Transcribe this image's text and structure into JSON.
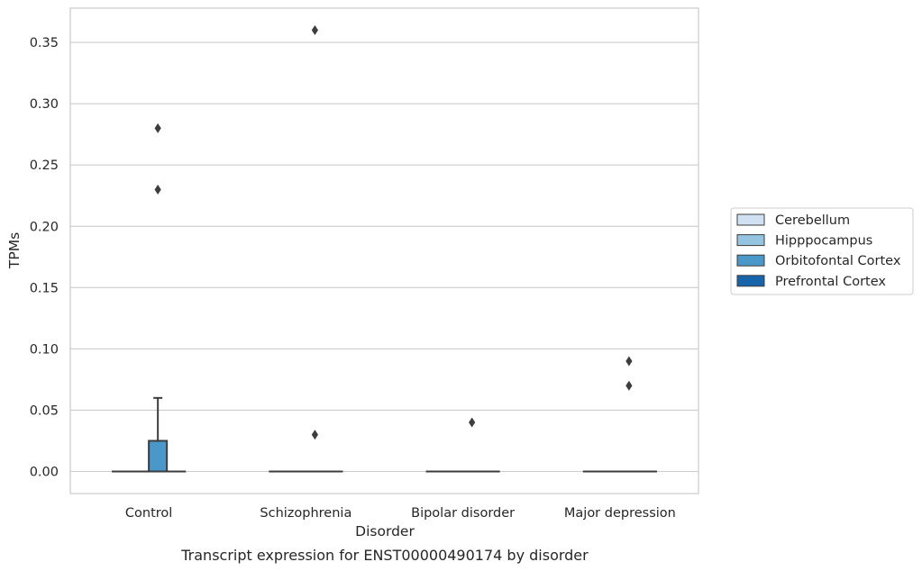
{
  "chart_data": {
    "type": "box",
    "title": "",
    "caption": "Transcript expression for ENST00000490174 by disorder",
    "xlabel": "Disorder",
    "ylabel": "TPMs",
    "ylim": [
      -0.018,
      0.378
    ],
    "yticks": [
      0.0,
      0.05,
      0.1,
      0.15,
      0.2,
      0.25,
      0.3,
      0.35
    ],
    "ytick_labels": [
      "0.00",
      "0.05",
      "0.10",
      "0.15",
      "0.20",
      "0.25",
      "0.30",
      "0.35"
    ],
    "grid": "horizontal",
    "legend_position": "right",
    "categories": [
      "Control",
      "Schizophrenia",
      "Bipolar disorder",
      "Major depression"
    ],
    "series": [
      {
        "name": "Cerebellum",
        "color": "#d0e1f2",
        "boxes": [
          {
            "category": "Control",
            "q1": 0,
            "median": 0,
            "q3": 0,
            "whisker_low": 0,
            "whisker_high": 0,
            "outliers": []
          },
          {
            "category": "Schizophrenia",
            "q1": 0,
            "median": 0,
            "q3": 0,
            "whisker_low": 0,
            "whisker_high": 0,
            "outliers": []
          },
          {
            "category": "Bipolar disorder",
            "q1": 0,
            "median": 0,
            "q3": 0,
            "whisker_low": 0,
            "whisker_high": 0,
            "outliers": []
          },
          {
            "category": "Major depression",
            "q1": 0,
            "median": 0,
            "q3": 0,
            "whisker_low": 0,
            "whisker_high": 0,
            "outliers": []
          }
        ]
      },
      {
        "name": "Hipppocampus",
        "color": "#94c4df",
        "boxes": [
          {
            "category": "Control",
            "q1": 0,
            "median": 0,
            "q3": 0,
            "whisker_low": 0,
            "whisker_high": 0,
            "outliers": []
          },
          {
            "category": "Schizophrenia",
            "q1": 0,
            "median": 0,
            "q3": 0,
            "whisker_low": 0,
            "whisker_high": 0,
            "outliers": []
          },
          {
            "category": "Bipolar disorder",
            "q1": 0,
            "median": 0,
            "q3": 0,
            "whisker_low": 0,
            "whisker_high": 0,
            "outliers": []
          },
          {
            "category": "Major depression",
            "q1": 0,
            "median": 0,
            "q3": 0,
            "whisker_low": 0,
            "whisker_high": 0,
            "outliers": []
          }
        ]
      },
      {
        "name": "Orbitofontal Cortex",
        "color": "#4a98c9",
        "boxes": [
          {
            "category": "Control",
            "q1": 0,
            "median": 0,
            "q3": 0.025,
            "whisker_low": 0,
            "whisker_high": 0.06,
            "outliers": [
              0.23,
              0.28
            ]
          },
          {
            "category": "Schizophrenia",
            "q1": 0,
            "median": 0,
            "q3": 0,
            "whisker_low": 0,
            "whisker_high": 0,
            "outliers": [
              0.03,
              0.36
            ]
          },
          {
            "category": "Bipolar disorder",
            "q1": 0,
            "median": 0,
            "q3": 0,
            "whisker_low": 0,
            "whisker_high": 0,
            "outliers": [
              0.04
            ]
          },
          {
            "category": "Major depression",
            "q1": 0,
            "median": 0,
            "q3": 0,
            "whisker_low": 0,
            "whisker_high": 0,
            "outliers": [
              0.07,
              0.09
            ]
          }
        ]
      },
      {
        "name": "Prefrontal Cortex",
        "color": "#1764ab",
        "boxes": [
          {
            "category": "Control",
            "q1": 0,
            "median": 0,
            "q3": 0,
            "whisker_low": 0,
            "whisker_high": 0,
            "outliers": []
          },
          {
            "category": "Schizophrenia",
            "q1": 0,
            "median": 0,
            "q3": 0,
            "whisker_low": 0,
            "whisker_high": 0,
            "outliers": []
          },
          {
            "category": "Bipolar disorder",
            "q1": 0,
            "median": 0,
            "q3": 0,
            "whisker_low": 0,
            "whisker_high": 0,
            "outliers": []
          },
          {
            "category": "Major depression",
            "q1": 0,
            "median": 0,
            "q3": 0,
            "whisker_low": 0,
            "whisker_high": 0,
            "outliers": []
          }
        ]
      }
    ]
  }
}
